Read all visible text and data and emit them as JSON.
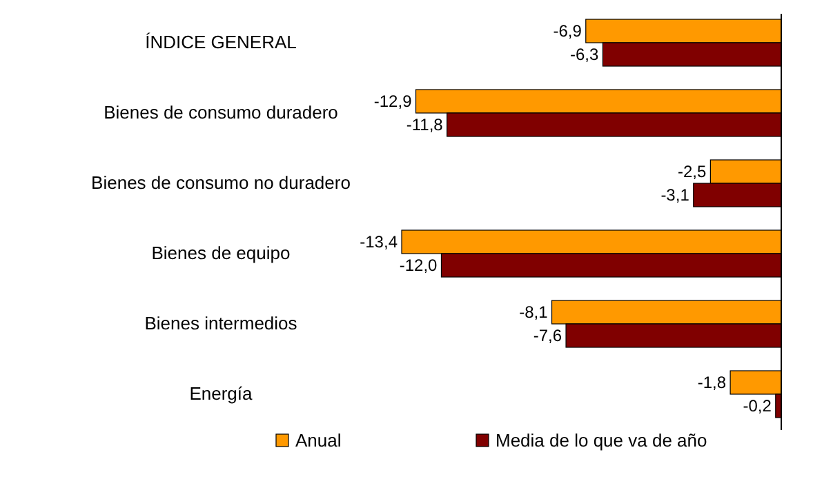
{
  "chart_data": {
    "type": "bar",
    "orientation": "horizontal",
    "categories": [
      "ÍNDICE GENERAL",
      "Bienes de consumo duradero",
      "Bienes de consumo no duradero",
      "Bienes de equipo",
      "Bienes intermedios",
      "Energía"
    ],
    "series": [
      {
        "name": "Anual",
        "color": "#ff9900",
        "values": [
          -6.9,
          -12.9,
          -2.5,
          -13.4,
          -8.1,
          -1.8
        ],
        "value_labels": [
          "-6,9",
          "-12,9",
          "-2,5",
          "-13,4",
          "-8,1",
          "-1,8"
        ]
      },
      {
        "name": "Media de lo que va de año",
        "color": "#800000",
        "values": [
          -6.3,
          -11.8,
          -3.1,
          -12.0,
          -7.6,
          -0.2
        ],
        "value_labels": [
          "-6,3",
          "-11,8",
          "-3,1",
          "-12,0",
          "-7,6",
          "-0,2"
        ]
      }
    ],
    "legend": "bottom"
  }
}
